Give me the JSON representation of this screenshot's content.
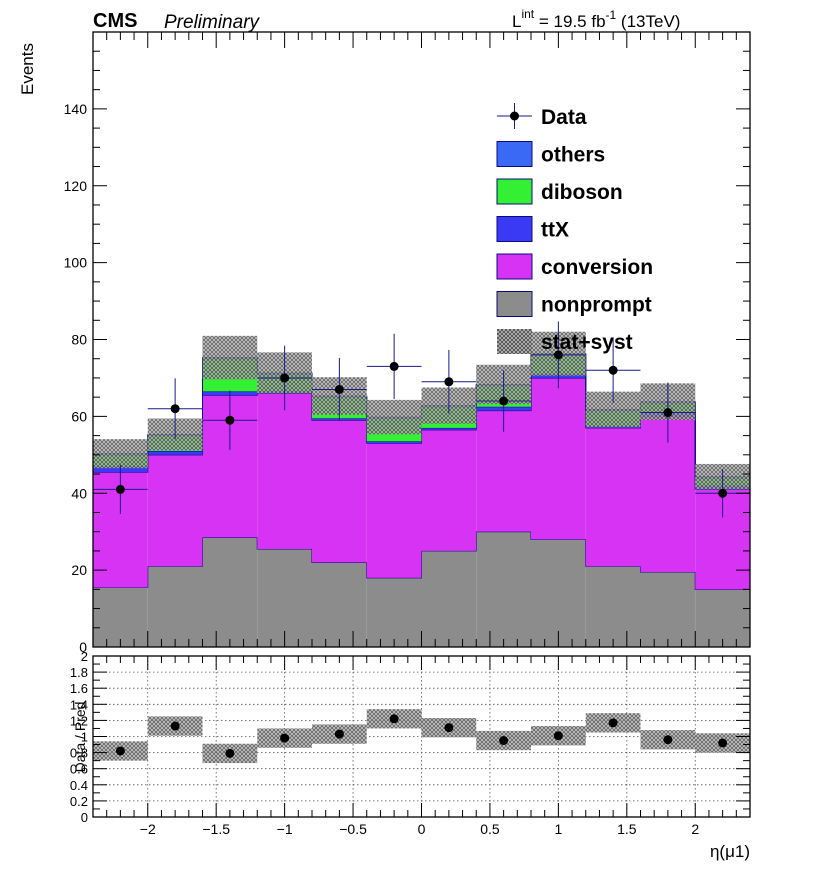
{
  "header": {
    "experiment": "CMS",
    "status": "Preliminary",
    "lumi_prefix": "L",
    "lumi_sup": "int",
    "lumi_mid": " = 19.5 fb",
    "lumi_exp": "-1",
    "lumi_suffix": " (13TeV)"
  },
  "chart_data": [
    {
      "type": "bar",
      "stacked": true,
      "ylabel": "Events",
      "xlim": [
        -2.4,
        2.4
      ],
      "ylim": [
        0,
        160
      ],
      "y_ticks": [
        0,
        20,
        40,
        60,
        80,
        100,
        120,
        140
      ],
      "bin_edges": [
        -2.4,
        -2.0,
        -1.6,
        -1.2,
        -0.8,
        -0.4,
        0.0,
        0.4,
        0.8,
        1.2,
        1.6,
        2.0,
        2.4
      ],
      "series": [
        {
          "name": "nonprompt",
          "color": "#8c8c8c",
          "values": [
            15.5,
            21,
            28.5,
            25.5,
            22,
            18,
            25,
            30,
            28,
            21,
            19.5,
            15
          ]
        },
        {
          "name": "conversion",
          "color": "#d633f5",
          "values": [
            30,
            29,
            37,
            40.5,
            37,
            35,
            31.5,
            31.5,
            42,
            36,
            40.5,
            26
          ]
        },
        {
          "name": "ttX",
          "color": "#3a3af5",
          "values": [
            1.5,
            1,
            1,
            0.5,
            0.5,
            0.5,
            0.5,
            1,
            1,
            0.5,
            1,
            1
          ]
        },
        {
          "name": "diboson",
          "color": "#33f033",
          "values": [
            3,
            4,
            8.5,
            4.5,
            5.5,
            6,
            5.5,
            5.5,
            5,
            4,
            2.5,
            2
          ]
        },
        {
          "name": "others",
          "color": "#3a6af5",
          "values": [
            0.3,
            0.3,
            0.3,
            0.3,
            0.3,
            0.3,
            0.3,
            0.3,
            0.3,
            0.3,
            0.3,
            0.3
          ]
        }
      ],
      "uncertainty": {
        "name": "stat+syst",
        "relative": 0.075
      },
      "data": {
        "name": "Data",
        "values": [
          41,
          62,
          59,
          70,
          67,
          73,
          69,
          64,
          76,
          72,
          61,
          40
        ],
        "errors": [
          6.4,
          7.9,
          7.7,
          8.4,
          8.2,
          8.5,
          8.3,
          8.0,
          8.7,
          8.5,
          7.8,
          6.3
        ]
      },
      "legend": {
        "placement": "top-right",
        "entries": [
          {
            "label": "Data",
            "kind": "marker"
          },
          {
            "label": "others",
            "kind": "fill",
            "color": "#3a6af5"
          },
          {
            "label": "diboson",
            "kind": "fill",
            "color": "#33f033"
          },
          {
            "label": "ttX",
            "kind": "fill",
            "color": "#3a3af5"
          },
          {
            "label": "conversion",
            "kind": "fill",
            "color": "#d633f5"
          },
          {
            "label": "nonprompt",
            "kind": "fill",
            "color": "#8c8c8c"
          },
          {
            "label": "stat+syst",
            "kind": "hatch"
          }
        ]
      }
    },
    {
      "type": "scatter",
      "ylabel": "Data / Pred",
      "xlabel": "η(μ1)",
      "xlim": [
        -2.4,
        2.4
      ],
      "ylim": [
        0,
        2
      ],
      "grid": true,
      "x_ticks": [
        -2,
        -1.5,
        -1,
        -0.5,
        0,
        0.5,
        1,
        1.5,
        2
      ],
      "x_tick_labels": [
        "−2",
        "−1.5",
        "−1",
        "−0.5",
        "0",
        "0.5",
        "1",
        "1.5",
        "2"
      ],
      "y_ticks": [
        0,
        0.2,
        0.4,
        0.6,
        0.8,
        1,
        1.2,
        1.4,
        1.6,
        1.8,
        2
      ],
      "y_tick_labels": [
        "0",
        "0.2",
        "0.4",
        "0.6",
        "0.8",
        "1",
        "1.2",
        "1.4",
        "1.6",
        "1.8",
        "2"
      ],
      "x": [
        -2.2,
        -1.8,
        -1.4,
        -1.0,
        -0.6,
        -0.2,
        0.2,
        0.6,
        1.0,
        1.4,
        1.8,
        2.2
      ],
      "values": [
        0.82,
        1.13,
        0.79,
        0.98,
        1.03,
        1.22,
        1.11,
        0.95,
        1.01,
        1.17,
        0.96,
        0.92
      ],
      "band_half_width": 0.12
    }
  ]
}
